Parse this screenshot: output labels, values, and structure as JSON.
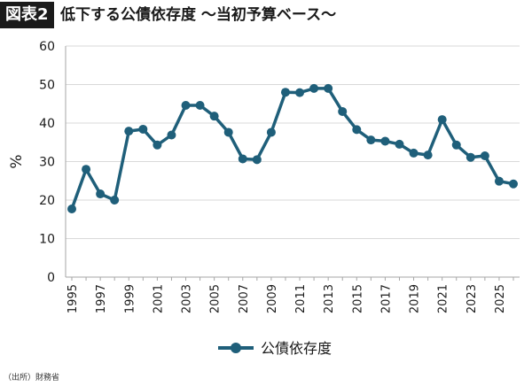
{
  "header": {
    "badge": "図表2",
    "title": "低下する公債依存度 〜当初予算ベース〜"
  },
  "source": "（出所）財務省",
  "colors": {
    "series": "#1f5f7a",
    "grid": "#d9d9d9",
    "axis": "#a6a6a6",
    "text": "#1a1a1a"
  },
  "chart_data": {
    "type": "line",
    "title": "",
    "xlabel": "",
    "ylabel": "%",
    "ylim": [
      0,
      60
    ],
    "yticks": [
      0,
      10,
      20,
      30,
      40,
      50,
      60
    ],
    "xtick_labels": [
      "1995",
      "1997",
      "1999",
      "2001",
      "2003",
      "2005",
      "2007",
      "2009",
      "2011",
      "2013",
      "2015",
      "2017",
      "2019",
      "2021",
      "2023",
      "2025"
    ],
    "grid": true,
    "legend_position": "bottom",
    "x": [
      1995,
      1996,
      1997,
      1998,
      1999,
      2000,
      2001,
      2002,
      2003,
      2004,
      2005,
      2006,
      2007,
      2008,
      2009,
      2010,
      2011,
      2012,
      2013,
      2014,
      2015,
      2016,
      2017,
      2018,
      2019,
      2020,
      2021,
      2022,
      2023,
      2024,
      2025,
      2026
    ],
    "series": [
      {
        "name": "公債依存度",
        "values": [
          17.7,
          28.0,
          21.6,
          20.0,
          37.9,
          38.4,
          34.3,
          36.9,
          44.6,
          44.6,
          41.8,
          37.6,
          30.7,
          30.5,
          37.6,
          48.0,
          47.9,
          49.0,
          49.0,
          43.0,
          38.3,
          35.6,
          35.3,
          34.5,
          32.2,
          31.7,
          40.9,
          34.3,
          31.1,
          31.5,
          24.9,
          24.2
        ]
      }
    ]
  }
}
